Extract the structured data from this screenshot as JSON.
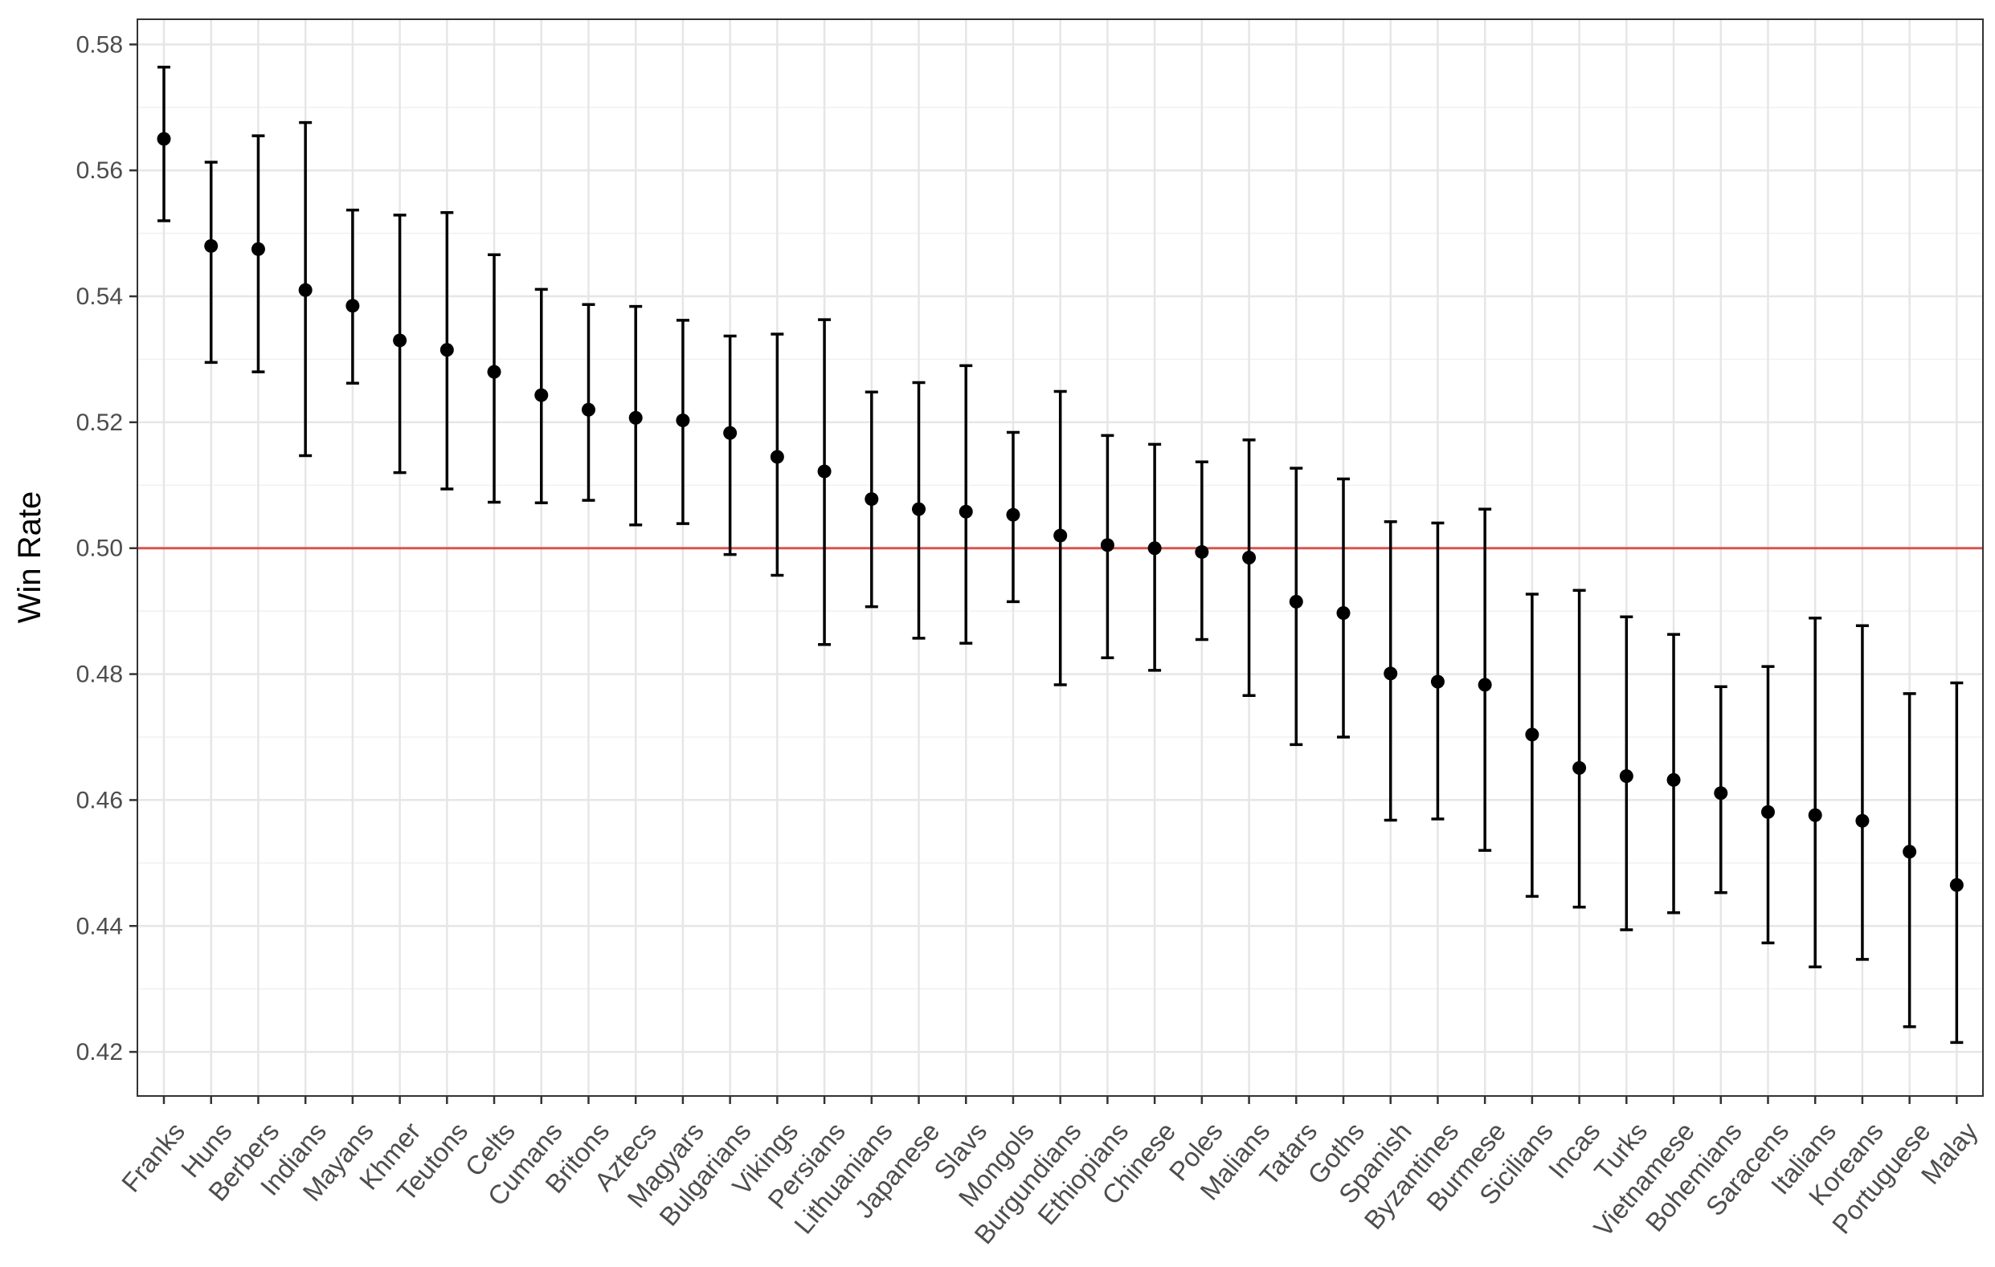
{
  "chart_data": {
    "type": "scatter",
    "title": "",
    "xlabel": "",
    "ylabel": "Win Rate",
    "ylim": [
      0.413,
      0.584
    ],
    "yticks": [
      "0.42",
      "0.44",
      "0.46",
      "0.48",
      "0.50",
      "0.52",
      "0.54",
      "0.56",
      "0.58"
    ],
    "grid": true,
    "reference_line": {
      "y": 0.5,
      "color": "#d9534f"
    },
    "categories": [
      "Franks",
      "Huns",
      "Berbers",
      "Indians",
      "Mayans",
      "Khmer",
      "Teutons",
      "Celts",
      "Cumans",
      "Britons",
      "Aztecs",
      "Magyars",
      "Bulgarians",
      "Vikings",
      "Persians",
      "Lithuanians",
      "Japanese",
      "Slavs",
      "Mongols",
      "Burgundians",
      "Ethiopians",
      "Chinese",
      "Poles",
      "Malians",
      "Tatars",
      "Goths",
      "Spanish",
      "Byzantines",
      "Burmese",
      "Sicilians",
      "Incas",
      "Turks",
      "Vietnamese",
      "Bohemians",
      "Saracens",
      "Italians",
      "Koreans",
      "Portuguese",
      "Malay"
    ],
    "series": [
      {
        "values": [
          0.565,
          0.548,
          0.5475,
          0.541,
          0.5385,
          0.533,
          0.5315,
          0.528,
          0.5243,
          0.522,
          0.5207,
          0.5203,
          0.5183,
          0.5145,
          0.5122,
          0.5078,
          0.5062,
          0.5058,
          0.5053,
          0.502,
          0.5005,
          0.5,
          0.4994,
          0.4985,
          0.4915,
          0.4897,
          0.4801,
          0.4788,
          0.4783,
          0.4704,
          0.4651,
          0.4638,
          0.4632,
          0.4611,
          0.4581,
          0.4576,
          0.4567,
          0.4518,
          0.4465
        ],
        "lower": [
          0.552,
          0.5295,
          0.528,
          0.5147,
          0.5262,
          0.512,
          0.5094,
          0.5073,
          0.5072,
          0.5076,
          0.5037,
          0.5039,
          0.499,
          0.4957,
          0.4847,
          0.4907,
          0.4857,
          0.4849,
          0.4915,
          0.4783,
          0.4826,
          0.4806,
          0.4855,
          0.4766,
          0.4688,
          0.47,
          0.4568,
          0.457,
          0.452,
          0.4447,
          0.443,
          0.4394,
          0.4421,
          0.4453,
          0.4373,
          0.4335,
          0.4347,
          0.424,
          0.4215
        ],
        "upper": [
          0.5764,
          0.5613,
          0.5655,
          0.5676,
          0.5537,
          0.5529,
          0.5533,
          0.5466,
          0.5411,
          0.5387,
          0.5384,
          0.5362,
          0.5337,
          0.534,
          0.5363,
          0.5248,
          0.5263,
          0.529,
          0.5184,
          0.5249,
          0.5179,
          0.5165,
          0.5137,
          0.5172,
          0.5127,
          0.511,
          0.5042,
          0.504,
          0.5062,
          0.4927,
          0.4933,
          0.4891,
          0.4863,
          0.478,
          0.4812,
          0.4889,
          0.4877,
          0.4769,
          0.4786
        ]
      }
    ]
  }
}
